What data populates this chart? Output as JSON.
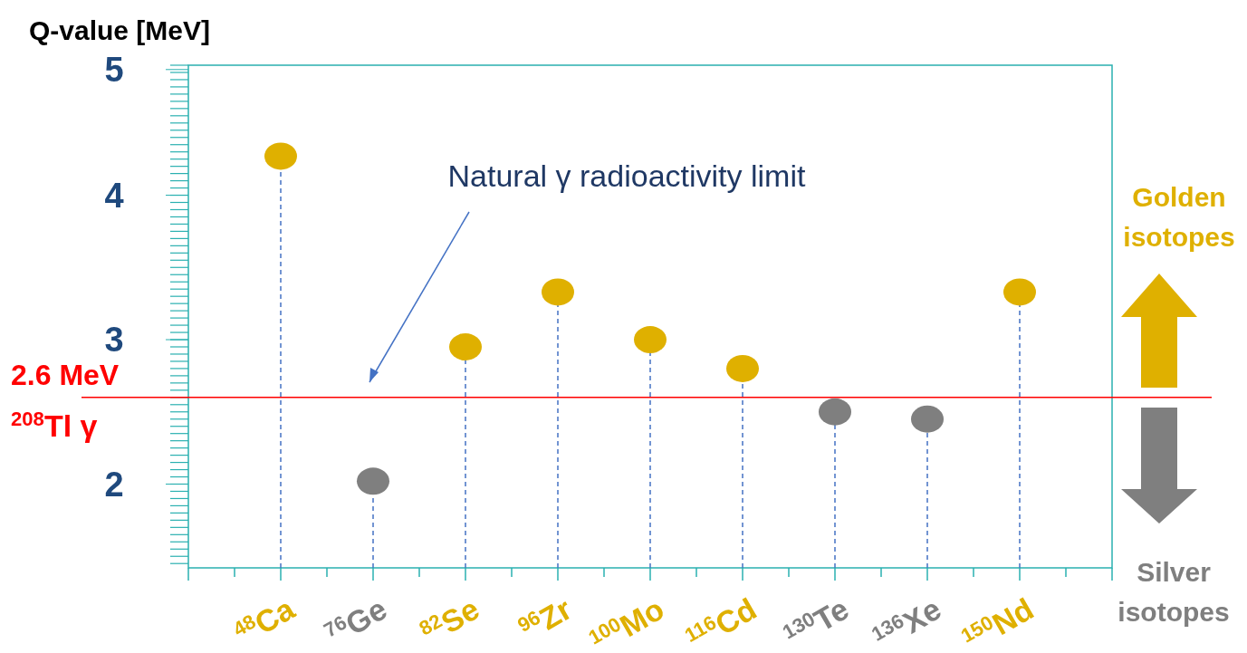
{
  "chart_data": {
    "type": "lollipop",
    "ylabel": "Q-value [MeV]",
    "categories": [
      "$^{48}$Ca",
      "$^{76}$Ge",
      "$^{82}$Se",
      "$^{96}$Zr",
      "$^{100}$Mo",
      "$^{116}$Cd",
      "$^{130}$Te",
      "$^{136}$Xe",
      "$^{150}$Nd"
    ],
    "values": [
      4.27,
      2.02,
      2.95,
      3.33,
      3.0,
      2.8,
      2.5,
      2.45,
      3.33
    ],
    "colors": [
      "#dfb000",
      "#7f7f7f",
      "#dfb000",
      "#dfb000",
      "#dfb000",
      "#dfb000",
      "#7f7f7f",
      "#7f7f7f",
      "#dfb000"
    ],
    "ylim": [
      1.42,
      4.9
    ],
    "yticks": [
      2,
      3,
      4,
      {
        "value": 4.87,
        "label": "5"
      }
    ],
    "grid": false,
    "marker": "circle",
    "line_style": "dashed",
    "ref_lines": [
      {
        "axis": "y",
        "value": 2.6,
        "label": "2.6 MeV",
        "color": "#ff0000"
      }
    ],
    "annotations": [
      "Natural γ radioactivity limit",
      "$^{208}$Tl γ",
      "Golden isotopes",
      "Silver isotopes"
    ]
  }
}
